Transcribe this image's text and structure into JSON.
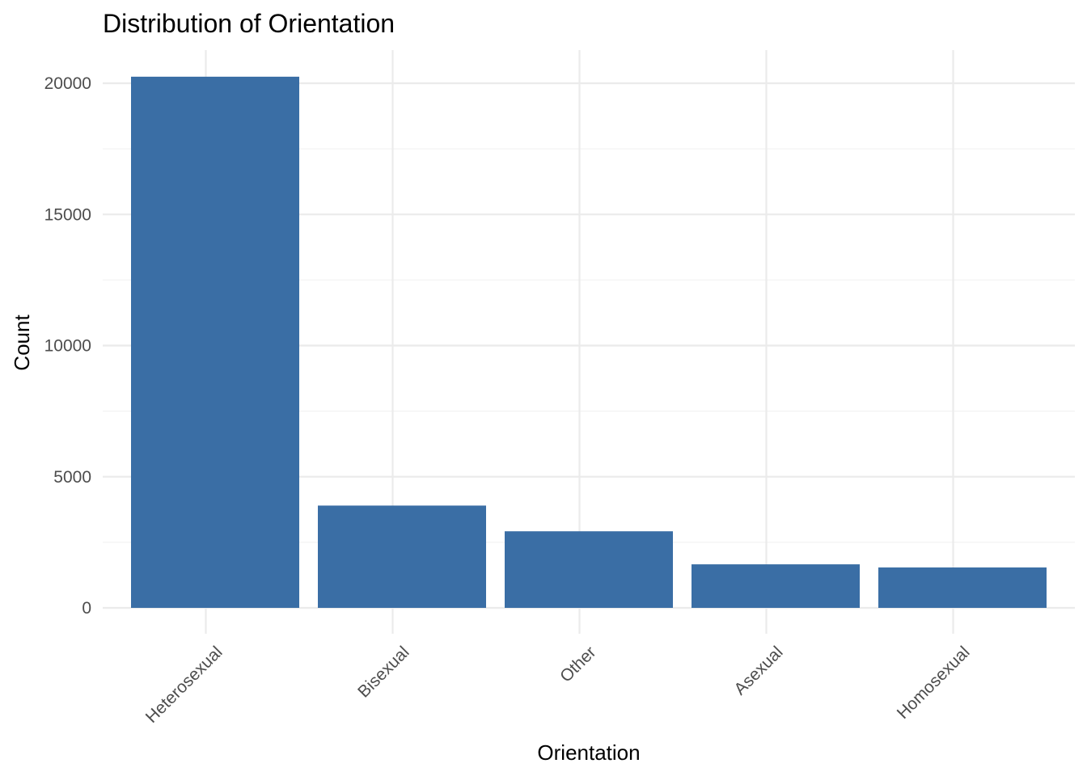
{
  "chart_data": {
    "type": "bar",
    "title": "Distribution of Orientation",
    "xlabel": "Orientation",
    "ylabel": "Count",
    "categories": [
      "Heterosexual",
      "Bisexual",
      "Other",
      "Asexual",
      "Homosexual"
    ],
    "values": [
      20250,
      3900,
      2920,
      1660,
      1540
    ],
    "ylim": [
      0,
      20000
    ],
    "y_ticks": [
      "0",
      "5000",
      "10000",
      "15000",
      "20000"
    ],
    "grid": true,
    "legend": "none",
    "colors": {
      "bar": "#3A6EA5",
      "grid_major": "#EBEBEB",
      "grid_minor": "#F3F3F3",
      "tick_text": "#4D4D4D"
    }
  }
}
